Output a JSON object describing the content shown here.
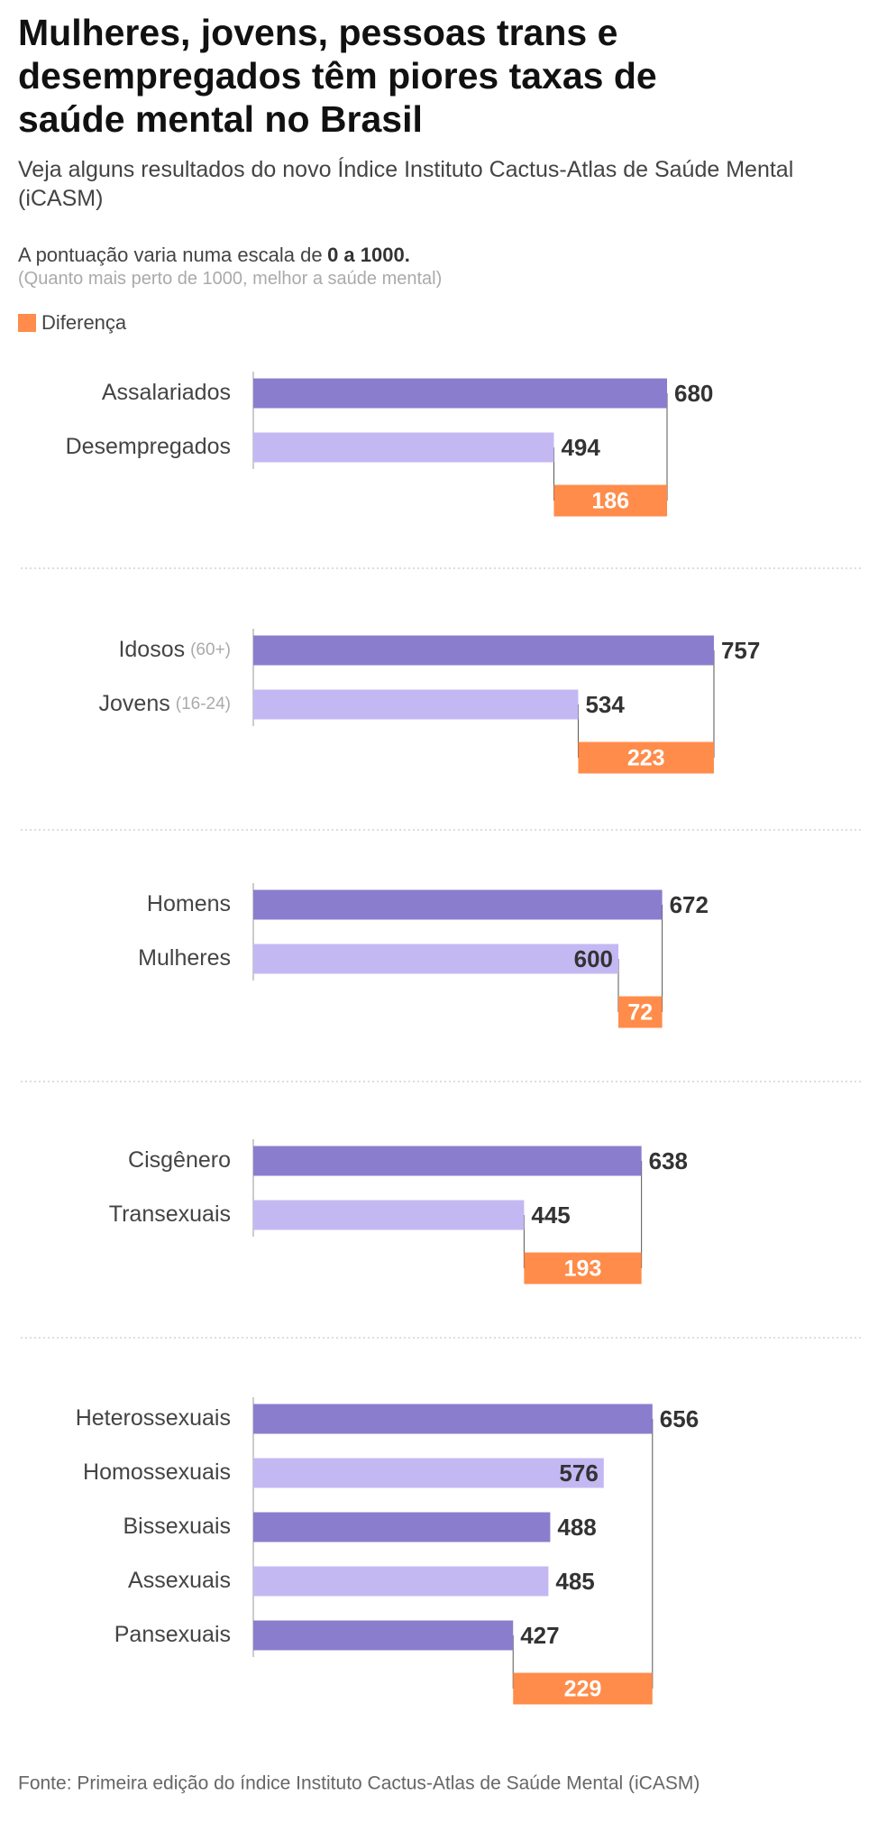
{
  "header": {
    "title": "Mulheres, jovens, pessoas trans e desempregados têm piores taxas de saúde mental no Brasil",
    "subtitle": "Veja alguns resultados do novo Índice Instituto Cactus-Atlas de Saúde Mental (iCASM)",
    "scale_note": "A pontuação varia numa escala de",
    "scale_range": "0 a 1000.",
    "scale_hint": "(Quanto mais perto de 1000, melhor a saúde mental)"
  },
  "legend": {
    "label": "Diferença",
    "color": "#ff8c4a"
  },
  "bar_colors": [
    "#8b7dcd",
    "#c4b8f3"
  ],
  "chart_data": [
    {
      "type": "bar",
      "categories": [
        "Assalariados",
        "Desempregados"
      ],
      "category_notes": [
        null,
        null
      ],
      "values": [
        680,
        494
      ],
      "difference": 186
    },
    {
      "type": "bar",
      "categories": [
        "Idosos",
        "Jovens"
      ],
      "category_notes": [
        "(60+)",
        "(16-24)"
      ],
      "values": [
        757,
        534
      ],
      "difference": 223
    },
    {
      "type": "bar",
      "categories": [
        "Homens",
        "Mulheres"
      ],
      "category_notes": [
        null,
        null
      ],
      "values": [
        672,
        600
      ],
      "difference": 72
    },
    {
      "type": "bar",
      "categories": [
        "Cisgênero",
        "Transexuais"
      ],
      "category_notes": [
        null,
        null
      ],
      "values": [
        638,
        445
      ],
      "difference": 193
    },
    {
      "type": "bar",
      "categories": [
        "Heterossexuais",
        "Homossexuais",
        "Bissexuais",
        "Assexuais",
        "Pansexuais"
      ],
      "category_notes": [
        null,
        null,
        null,
        null,
        null
      ],
      "values": [
        656,
        576,
        488,
        485,
        427
      ],
      "difference": 229
    }
  ],
  "source": "Fonte: Primeira edição do índice Instituto Cactus-Atlas de Saúde Mental (iCASM)"
}
